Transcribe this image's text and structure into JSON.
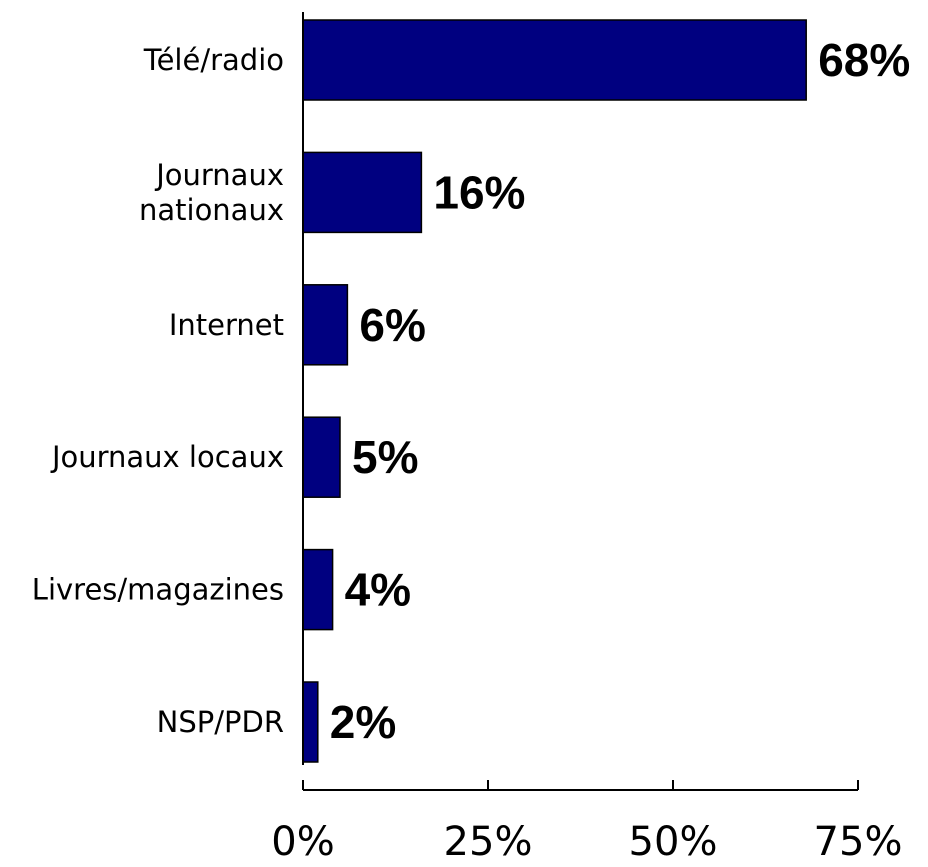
{
  "chart_data": {
    "type": "bar",
    "orientation": "horizontal",
    "categories": [
      [
        "Télé/radio"
      ],
      [
        "Journaux",
        "nationaux"
      ],
      [
        "Internet"
      ],
      [
        "Journaux locaux"
      ],
      [
        "Livres/magazines"
      ],
      [
        "NSP/PDR"
      ]
    ],
    "values": [
      68,
      16,
      6,
      5,
      4,
      2
    ],
    "data_labels": [
      "68%",
      "16%",
      "6%",
      "5%",
      "4%",
      "2%"
    ],
    "xlim": [
      0,
      75
    ],
    "x_ticks": [
      0,
      25,
      50,
      75
    ],
    "x_tick_labels": [
      "0%",
      "25%",
      "50%",
      "75%"
    ],
    "grid": false,
    "legend": "none",
    "bar_color": "#000080"
  }
}
